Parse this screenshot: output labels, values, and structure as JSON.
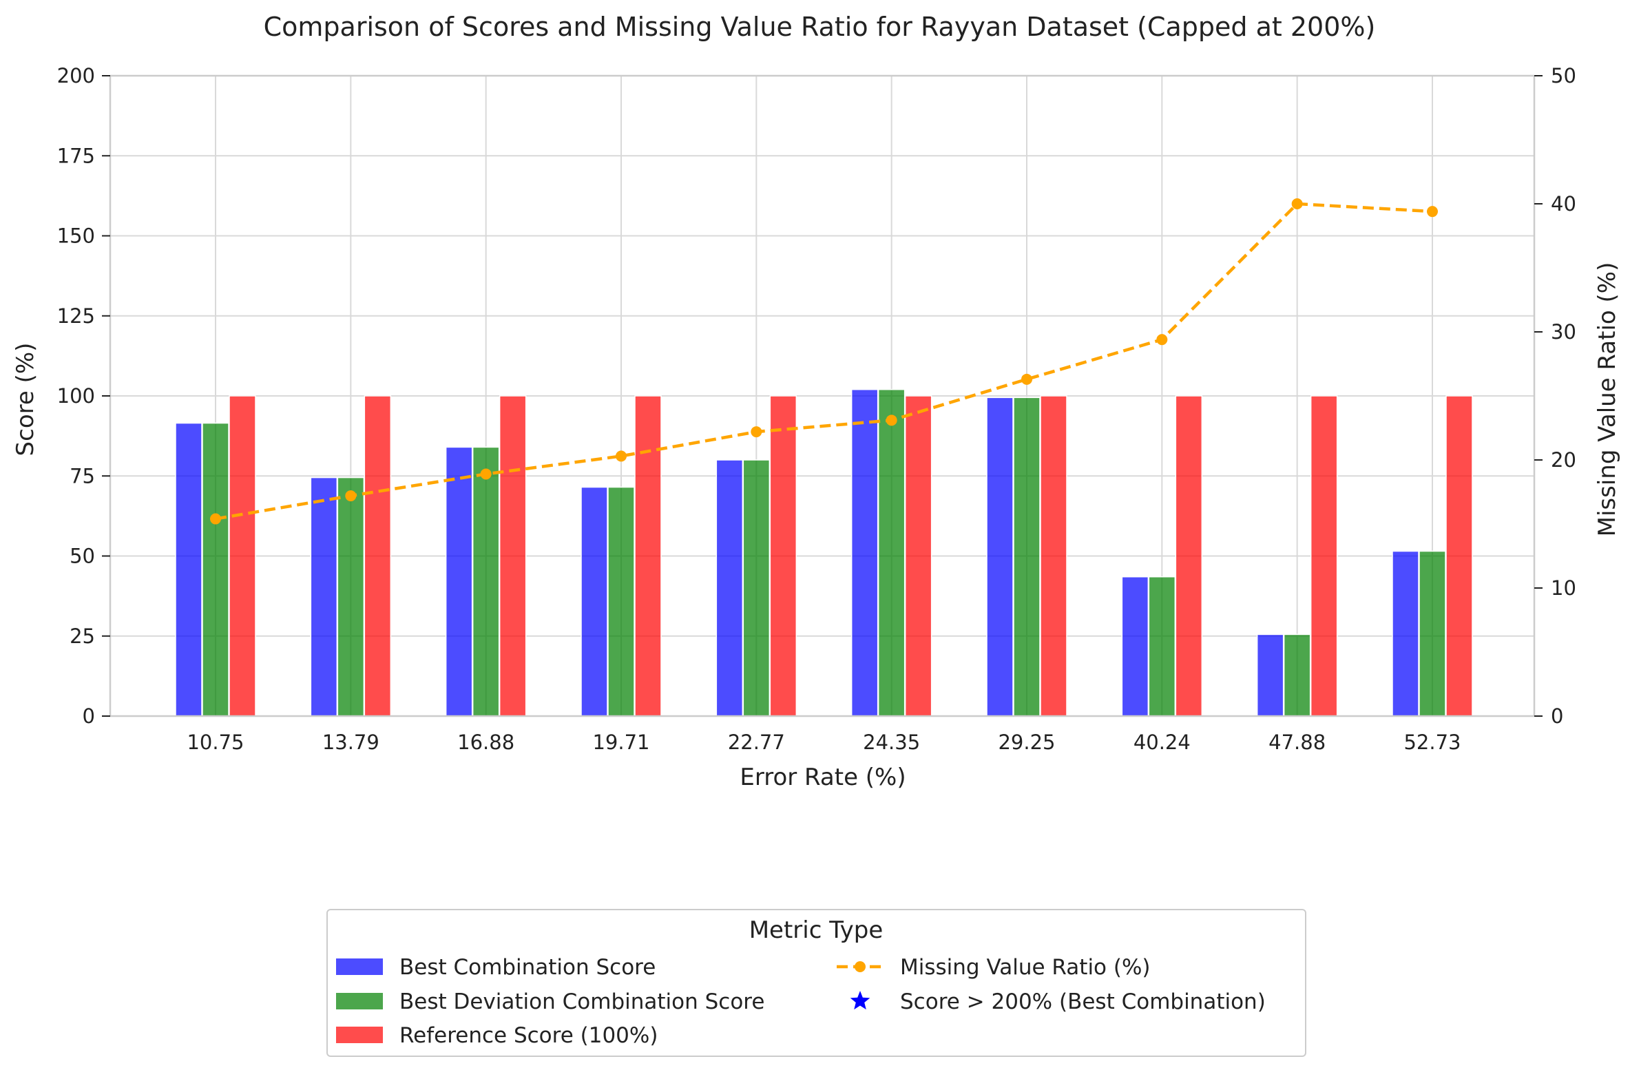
{
  "chart_data": {
    "type": "bar",
    "title": "Comparison of Scores and Missing Value Ratio for Rayyan Dataset (Capped at 200%)",
    "xlabel": "Error Rate (%)",
    "ylabel": "Score (%)",
    "y2label": "Missing Value Ratio (%)",
    "categories": [
      "10.75",
      "13.79",
      "16.88",
      "19.71",
      "22.77",
      "24.35",
      "29.25",
      "40.24",
      "47.88",
      "52.73"
    ],
    "ylim": [
      0,
      200
    ],
    "y2lim": [
      0,
      50
    ],
    "yticks": [
      0,
      25,
      50,
      75,
      100,
      125,
      150,
      175,
      200
    ],
    "y2ticks": [
      0,
      10,
      20,
      30,
      40,
      50
    ],
    "grid": true,
    "series": [
      {
        "name": "Best Combination Score",
        "kind": "bar",
        "axis": "left",
        "color": "#0000ff",
        "values": [
          91.5,
          74.5,
          84,
          71.5,
          80,
          102,
          99.5,
          43.5,
          25.5,
          51.5
        ]
      },
      {
        "name": "Best Deviation Combination Score",
        "kind": "bar",
        "axis": "left",
        "color": "#008000",
        "values": [
          91.5,
          74.5,
          84,
          71.5,
          80,
          102,
          99.5,
          43.5,
          25.5,
          51.5
        ]
      },
      {
        "name": "Reference Score (100%)",
        "kind": "bar",
        "axis": "left",
        "color": "#ff0000",
        "values": [
          100,
          100,
          100,
          100,
          100,
          100,
          100,
          100,
          100,
          100
        ]
      },
      {
        "name": "Missing Value Ratio (%)",
        "kind": "line",
        "axis": "right",
        "color": "#ffa500",
        "values": [
          15.4,
          17.2,
          18.9,
          20.3,
          22.2,
          23.1,
          26.3,
          29.4,
          40.0,
          39.4
        ]
      }
    ],
    "legend": {
      "title": "Metric Type",
      "placement": "bottom-center",
      "extra_entries": [
        {
          "name": "Score > 200% (Best Combination)",
          "marker": "star",
          "color": "#0000ff"
        }
      ]
    }
  }
}
